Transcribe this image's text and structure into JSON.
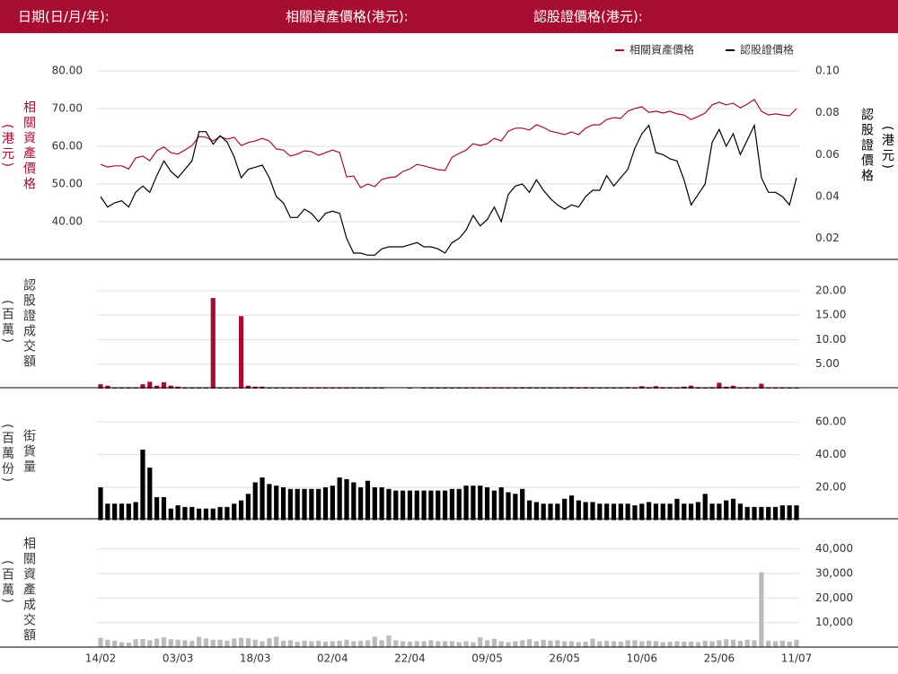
{
  "header": {
    "date_label": "日期(日/月/年):",
    "underlying_label": "相關資產價格(港元):",
    "warrant_label": "認股證價格(港元):"
  },
  "chart_data": [
    {
      "type": "line",
      "y_label": "相關資產價格",
      "y_unit": "(港元)",
      "y2_label": "認股證價格",
      "y2_unit": "(港元)",
      "legend": "top-right",
      "grid": true,
      "ylim": [
        30,
        80
      ],
      "yticks": [
        {
          "value": 40,
          "label": "40.00"
        },
        {
          "value": 50,
          "label": "50.00"
        },
        {
          "value": 60,
          "label": "60.00"
        },
        {
          "value": 70,
          "label": "70.00"
        },
        {
          "value": 80,
          "label": "80.00"
        }
      ],
      "y2lim": [
        0.01,
        0.1
      ],
      "y2ticks": [
        {
          "value": 0.02,
          "label": "0.02"
        },
        {
          "value": 0.04,
          "label": "0.04"
        },
        {
          "value": 0.06,
          "label": "0.06"
        },
        {
          "value": 0.08,
          "label": "0.08"
        },
        {
          "value": 0.1,
          "label": "0.10"
        }
      ],
      "series": [
        {
          "name": "相關資產價格",
          "color": "#a50d31",
          "values": [
            55.2,
            54.5,
            54.8,
            54.8,
            54.0,
            56.9,
            57.4,
            56.2,
            58.8,
            59.8,
            58.3,
            57.9,
            59.0,
            60.2,
            62.6,
            62.4,
            61.4,
            62.6,
            61.9,
            62.4,
            60.2,
            61.0,
            61.4,
            62.1,
            61.4,
            59.3,
            59.0,
            57.4,
            57.9,
            58.8,
            58.6,
            57.6,
            58.3,
            59.0,
            58.3,
            51.9,
            52.1,
            49.0,
            50.0,
            49.3,
            51.2,
            51.7,
            51.9,
            53.3,
            54.0,
            55.2,
            54.8,
            54.3,
            53.8,
            53.6,
            57.1,
            58.1,
            59.0,
            60.7,
            60.2,
            60.7,
            62.1,
            61.4,
            64.0,
            64.8,
            64.8,
            64.3,
            65.7,
            65.0,
            64.0,
            63.6,
            63.1,
            63.8,
            63.1,
            64.8,
            65.7,
            65.7,
            67.1,
            67.6,
            67.4,
            69.3,
            70.0,
            70.5,
            69.0,
            69.3,
            68.8,
            69.3,
            68.6,
            68.3,
            67.1,
            67.9,
            68.8,
            71.0,
            71.7,
            71.0,
            71.4,
            70.2,
            71.2,
            72.4,
            69.3,
            68.3,
            68.6,
            68.3,
            68.1,
            70.0
          ]
        },
        {
          "name": "認股證價格",
          "color": "#000000",
          "axis": "y2",
          "values": [
            0.04,
            0.035,
            0.037,
            0.038,
            0.035,
            0.042,
            0.045,
            0.042,
            0.05,
            0.057,
            0.052,
            0.049,
            0.053,
            0.057,
            0.071,
            0.071,
            0.065,
            0.069,
            0.066,
            0.059,
            0.049,
            0.053,
            0.054,
            0.055,
            0.049,
            0.04,
            0.037,
            0.03,
            0.03,
            0.034,
            0.032,
            0.028,
            0.032,
            0.033,
            0.032,
            0.02,
            0.013,
            0.013,
            0.012,
            0.012,
            0.015,
            0.016,
            0.016,
            0.016,
            0.017,
            0.018,
            0.016,
            0.016,
            0.015,
            0.013,
            0.018,
            0.02,
            0.024,
            0.031,
            0.026,
            0.029,
            0.035,
            0.028,
            0.041,
            0.045,
            0.046,
            0.042,
            0.048,
            0.043,
            0.039,
            0.036,
            0.034,
            0.036,
            0.035,
            0.04,
            0.043,
            0.043,
            0.05,
            0.045,
            0.049,
            0.053,
            0.063,
            0.07,
            0.074,
            0.061,
            0.06,
            0.058,
            0.057,
            0.048,
            0.036,
            0.041,
            0.046,
            0.066,
            0.072,
            0.064,
            0.07,
            0.06,
            0.067,
            0.074,
            0.049,
            0.042,
            0.042,
            0.04,
            0.036,
            0.049
          ]
        }
      ]
    },
    {
      "type": "bar",
      "y_label": "認股證成交額",
      "y_unit": "(百萬)",
      "color": "#a50d31",
      "grid": true,
      "ylim": [
        0,
        22
      ],
      "yticks": [
        {
          "value": 5,
          "label": "5.00"
        },
        {
          "value": 10,
          "label": "10.00"
        },
        {
          "value": 15,
          "label": "15.00"
        },
        {
          "value": 20,
          "label": "20.00"
        }
      ],
      "values": [
        0.9,
        0.6,
        0.1,
        0.1,
        0.1,
        0.1,
        0.9,
        1.4,
        0.6,
        1.3,
        0.6,
        0.4,
        0.1,
        0.1,
        0.1,
        0.1,
        18.5,
        0.1,
        0.1,
        0.2,
        14.8,
        0.6,
        0.4,
        0.4,
        0.2,
        0.2,
        0.1,
        0.2,
        0.1,
        0.1,
        0.1,
        0.1,
        0.1,
        0.2,
        0.1,
        0.1,
        0.2,
        0.1,
        0.2,
        0.1,
        0.1,
        0,
        0,
        0,
        0.1,
        0,
        0.1,
        0.1,
        0.1,
        0.1,
        0.1,
        0.1,
        0.1,
        0.1,
        0.1,
        0.1,
        0.1,
        0.1,
        0.2,
        0.1,
        0.3,
        0.3,
        0.2,
        0.1,
        0.1,
        0.2,
        0.1,
        0.3,
        0.1,
        0.3,
        0.2,
        0.1,
        0.2,
        0.1,
        0.2,
        0.3,
        0.2,
        0.5,
        0.3,
        0.5,
        0.3,
        0.3,
        0.2,
        0.4,
        0.6,
        0.3,
        0.2,
        0.3,
        1.2,
        0.4,
        0.6,
        0.2,
        0.3,
        0.1,
        1.0,
        0.2,
        0.1,
        0.1,
        0.1,
        0.1
      ]
    },
    {
      "type": "bar",
      "y_label": "街貨量",
      "y_unit": "(百萬份)",
      "color": "#000000",
      "grid": true,
      "ylim": [
        0,
        66
      ],
      "yticks": [
        {
          "value": 20,
          "label": "20.00"
        },
        {
          "value": 40,
          "label": "40.00"
        },
        {
          "value": 60,
          "label": "60.00"
        }
      ],
      "values": [
        20,
        10,
        10,
        10,
        10,
        11,
        43,
        32,
        14,
        14,
        7,
        9,
        8,
        8,
        7,
        7,
        7,
        8,
        8,
        10,
        12,
        16,
        23,
        26,
        22,
        21,
        20,
        19,
        19,
        19,
        19,
        19,
        20,
        21,
        26,
        25,
        23,
        20,
        24,
        20,
        20,
        19,
        18,
        18,
        18,
        18,
        18,
        18,
        18,
        18,
        19,
        19,
        21,
        21,
        21,
        20,
        18,
        20,
        17,
        16,
        19,
        12,
        11,
        10,
        10,
        10,
        13,
        15,
        12,
        11,
        11,
        10,
        10,
        10,
        10,
        10,
        9,
        10,
        11,
        10,
        10,
        10,
        13,
        10,
        10,
        11,
        16,
        10,
        10,
        12,
        13,
        10,
        8,
        8,
        8,
        8,
        8,
        9,
        9,
        9
      ]
    },
    {
      "type": "bar",
      "y_label": "相關資產成交額",
      "y_unit": "(百萬)",
      "color": "#bbbbbb",
      "grid": true,
      "ylim": [
        0,
        43000
      ],
      "yticks": [
        {
          "value": 10000,
          "label": "10,000"
        },
        {
          "value": 20000,
          "label": "20,000"
        },
        {
          "value": 30000,
          "label": "30,000"
        },
        {
          "value": 40000,
          "label": "40,000"
        }
      ],
      "categories": [
        "14/02",
        null,
        null,
        null,
        null,
        null,
        null,
        null,
        null,
        null,
        null,
        "03/03",
        null,
        null,
        null,
        null,
        null,
        null,
        null,
        null,
        null,
        null,
        "18/03",
        null,
        null,
        null,
        null,
        null,
        null,
        null,
        null,
        null,
        null,
        "02/04",
        null,
        null,
        null,
        null,
        null,
        null,
        null,
        null,
        null,
        null,
        "22/04",
        null,
        null,
        null,
        null,
        null,
        null,
        null,
        null,
        null,
        null,
        "09/05",
        null,
        null,
        null,
        null,
        null,
        null,
        null,
        null,
        null,
        null,
        "26/05",
        null,
        null,
        null,
        null,
        null,
        null,
        null,
        null,
        null,
        null,
        "10/06",
        null,
        null,
        null,
        null,
        null,
        null,
        null,
        null,
        null,
        null,
        "25/06",
        null,
        null,
        null,
        null,
        null,
        null,
        null,
        null,
        null,
        null,
        "11/07"
      ],
      "values": [
        3800,
        3000,
        2600,
        2000,
        1800,
        3200,
        3300,
        2800,
        3500,
        4000,
        3200,
        3000,
        2800,
        2500,
        4200,
        3500,
        3000,
        3000,
        2600,
        3500,
        3800,
        3600,
        3000,
        2400,
        3600,
        4200,
        2600,
        2800,
        2200,
        2600,
        2400,
        2600,
        2200,
        2400,
        2600,
        3000,
        2400,
        2600,
        2800,
        4200,
        2800,
        4700,
        2800,
        2400,
        2200,
        2400,
        2400,
        2800,
        2400,
        2400,
        2400,
        2000,
        2400,
        2000,
        4000,
        2800,
        3400,
        2400,
        2000,
        2400,
        2800,
        3200,
        2400,
        3000,
        2600,
        2800,
        2400,
        2400,
        2000,
        2200,
        3400,
        2400,
        2600,
        2400,
        2200,
        2800,
        2800,
        2400,
        2600,
        2400,
        2000,
        2200,
        2400,
        2200,
        2200,
        2000,
        2600,
        2400,
        2800,
        3200,
        3000,
        2600,
        3000,
        2800,
        30500,
        2600,
        2400,
        2600,
        2200,
        3000
      ]
    }
  ]
}
